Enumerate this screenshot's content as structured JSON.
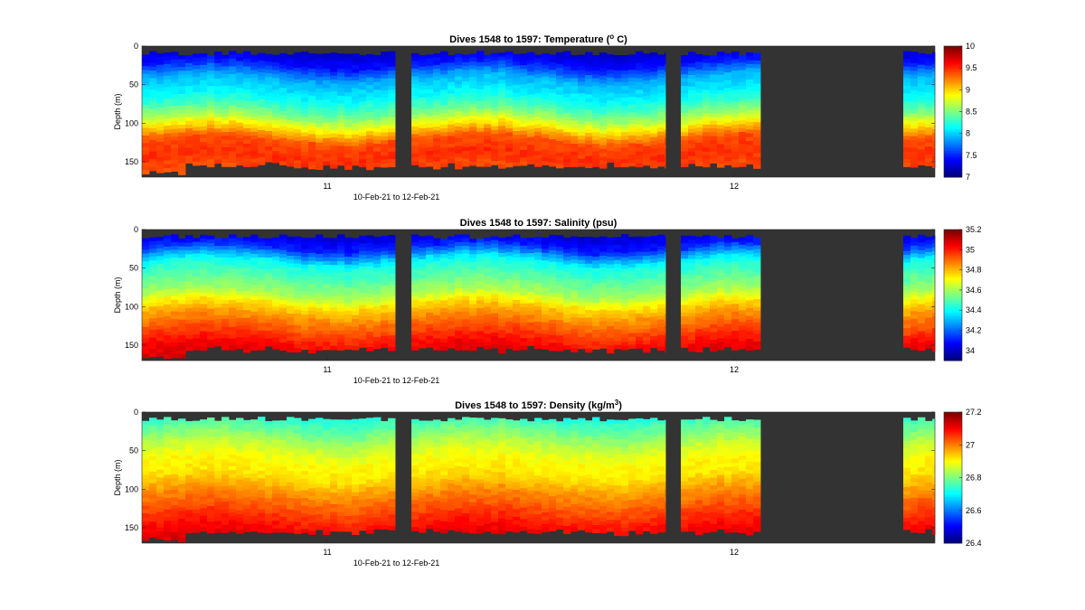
{
  "colors": {
    "background": "#ffffff",
    "no_data": "#333333",
    "colormap": "jet"
  },
  "chart_data": [
    {
      "type": "heatmap",
      "title": "Dives 1548 to 1597: Temperature (",
      "title_sup": "o",
      "title_end": " C)",
      "xlabel": "10-Feb-21 to 12-Feb-21",
      "ylabel": "Depth (m)",
      "x_ticks": [
        "11",
        "12"
      ],
      "y_ticks": [
        "0",
        "50",
        "100",
        "150"
      ],
      "ylim": [
        0,
        170
      ],
      "y_reversed": true,
      "colorbar_range": [
        7,
        10
      ],
      "colorbar_ticks": [
        "7",
        "7.5",
        "8",
        "8.5",
        "9",
        "9.5",
        "10"
      ],
      "profile": [
        [
          0,
          7.2
        ],
        [
          20,
          7.4
        ],
        [
          40,
          7.9
        ],
        [
          60,
          8.1
        ],
        [
          75,
          8.3
        ],
        [
          90,
          8.6
        ],
        [
          105,
          9.0
        ],
        [
          120,
          9.4
        ],
        [
          140,
          9.5
        ],
        [
          160,
          9.4
        ],
        [
          170,
          9.4
        ]
      ]
    },
    {
      "type": "heatmap",
      "title": "Dives 1548 to 1597: Salinity (psu)",
      "xlabel": "10-Feb-21 to 12-Feb-21",
      "ylabel": "Depth (m)",
      "x_ticks": [
        "11",
        "12"
      ],
      "y_ticks": [
        "0",
        "50",
        "100",
        "150"
      ],
      "ylim": [
        0,
        170
      ],
      "y_reversed": true,
      "colorbar_range": [
        33.9,
        35.2
      ],
      "colorbar_ticks": [
        "34",
        "34.2",
        "34.4",
        "34.6",
        "34.8",
        "35",
        "35.2"
      ],
      "profile": [
        [
          0,
          34.0
        ],
        [
          20,
          34.1
        ],
        [
          40,
          34.4
        ],
        [
          60,
          34.5
        ],
        [
          80,
          34.6
        ],
        [
          95,
          34.75
        ],
        [
          110,
          34.85
        ],
        [
          130,
          34.95
        ],
        [
          150,
          35.05
        ],
        [
          170,
          35.1
        ]
      ]
    },
    {
      "type": "heatmap",
      "title": "Dives 1548 to 1597: Density (kg/m",
      "title_sup": "3",
      "title_end": ")",
      "xlabel": "10-Feb-21 to 12-Feb-21",
      "ylabel": "Depth (m)",
      "x_ticks": [
        "11",
        "12"
      ],
      "y_ticks": [
        "0",
        "50",
        "100",
        "150"
      ],
      "ylim": [
        0,
        170
      ],
      "y_reversed": true,
      "colorbar_range": [
        26.4,
        27.2
      ],
      "colorbar_ticks": [
        "26.4",
        "26.6",
        "26.8",
        "27",
        "27.2"
      ],
      "profile": [
        [
          0,
          26.72
        ],
        [
          20,
          26.78
        ],
        [
          40,
          26.85
        ],
        [
          60,
          26.9
        ],
        [
          80,
          26.92
        ],
        [
          100,
          26.98
        ],
        [
          120,
          27.03
        ],
        [
          140,
          27.08
        ],
        [
          160,
          27.12
        ],
        [
          170,
          27.13
        ]
      ]
    }
  ]
}
